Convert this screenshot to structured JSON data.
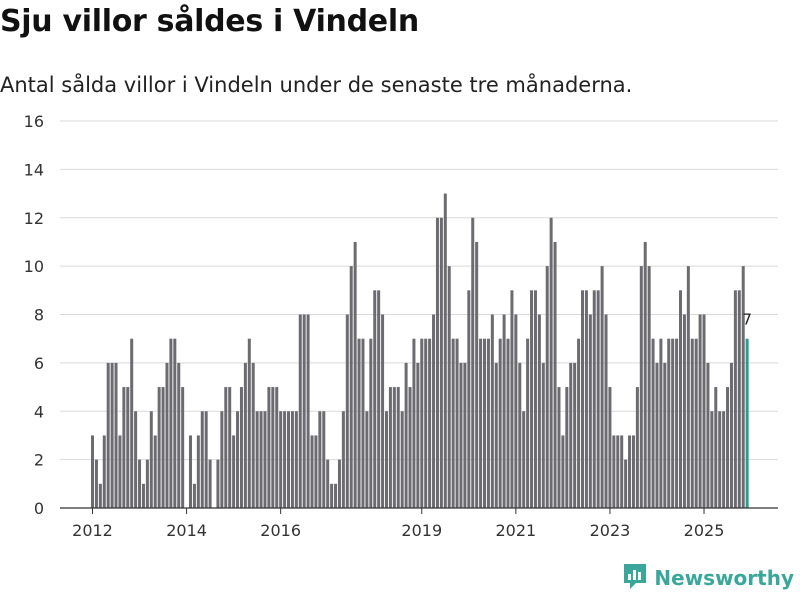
{
  "chart_title": "Sju villor såldes i Vindeln",
  "chart_subtitle": "Antal sålda villor i Vindeln under de senaste tre månaderna.",
  "brand": {
    "name": "Newsworthy",
    "icon": "newsworthy-logo-icon",
    "color": "#3aa79a"
  },
  "colors": {
    "bar": "#6c6b70",
    "highlight": "#2a9d8f",
    "grid": "#d9d9d9",
    "axis": "#333333",
    "text": "#333333"
  },
  "chart_data": {
    "type": "bar",
    "title": "Sju villor såldes i Vindeln",
    "subtitle": "Antal sålda villor i Vindeln under de senaste tre månaderna.",
    "xlabel": "",
    "ylabel": "",
    "ylim": [
      0,
      16
    ],
    "yticks": [
      0,
      2,
      4,
      6,
      8,
      10,
      12,
      14,
      16
    ],
    "grid": true,
    "start": "2012-01",
    "frequency": "monthly",
    "x_ticks": [
      {
        "label": "2012",
        "index": 0
      },
      {
        "label": "2014",
        "index": 24
      },
      {
        "label": "2016",
        "index": 48
      },
      {
        "label": "2019",
        "index": 84
      },
      {
        "label": "2021",
        "index": 108
      },
      {
        "label": "2023",
        "index": 132
      },
      {
        "label": "2025",
        "index": 156
      }
    ],
    "values": [
      3,
      2,
      1,
      3,
      6,
      6,
      6,
      3,
      5,
      5,
      7,
      4,
      2,
      1,
      2,
      4,
      3,
      5,
      5,
      6,
      7,
      7,
      6,
      5,
      0,
      3,
      1,
      3,
      4,
      4,
      2,
      0,
      2,
      4,
      5,
      5,
      3,
      4,
      5,
      6,
      7,
      6,
      4,
      4,
      4,
      5,
      5,
      5,
      4,
      4,
      4,
      4,
      4,
      8,
      8,
      8,
      3,
      3,
      4,
      4,
      2,
      1,
      1,
      2,
      4,
      8,
      10,
      11,
      7,
      7,
      4,
      7,
      9,
      9,
      8,
      4,
      5,
      5,
      5,
      4,
      6,
      5,
      7,
      6,
      7,
      7,
      7,
      8,
      12,
      12,
      13,
      10,
      7,
      7,
      6,
      6,
      9,
      12,
      11,
      7,
      7,
      7,
      8,
      6,
      7,
      8,
      7,
      9,
      8,
      6,
      4,
      7,
      9,
      9,
      8,
      6,
      10,
      12,
      11,
      5,
      3,
      5,
      6,
      6,
      7,
      9,
      9,
      8,
      9,
      9,
      10,
      8,
      5,
      3,
      3,
      3,
      2,
      3,
      3,
      5,
      10,
      11,
      10,
      7,
      6,
      7,
      6,
      7,
      7,
      7,
      9,
      8,
      10,
      7,
      7,
      8,
      8,
      6,
      4,
      5,
      4,
      4,
      5,
      6,
      9,
      9,
      10,
      7
    ],
    "highlight_index": 167,
    "annotation": {
      "index": 167,
      "label": "7"
    }
  }
}
